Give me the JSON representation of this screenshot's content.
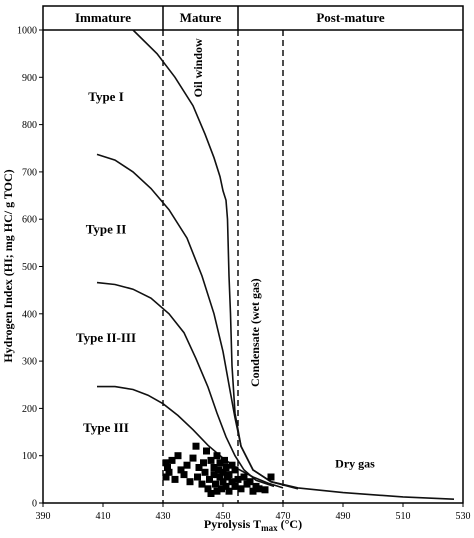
{
  "chart_data": {
    "type": "scatter",
    "title": "",
    "xlabel": "Pyrolysis T",
    "xlabel_sub": "max",
    "xlabel_unit": " (°C)",
    "ylabel": "Hydrogen Index (HI; mg HC/ g TOC)",
    "xlim": [
      390,
      530
    ],
    "ylim": [
      0,
      1000
    ],
    "x_ticks": [
      "390",
      "410",
      "430",
      "450",
      "470",
      "490",
      "510",
      "530"
    ],
    "y_ticks": [
      "0",
      "100",
      "200",
      "300",
      "400",
      "500",
      "600",
      "700",
      "800",
      "900",
      "1000"
    ],
    "maturity_zones": [
      {
        "label": "Immature",
        "x_from": 390,
        "x_to": 430
      },
      {
        "label": "Mature",
        "x_from": 430,
        "x_to": 455
      },
      {
        "label": "Post-mature",
        "x_from": 455,
        "x_to": 530
      }
    ],
    "boundary_lines_x": [
      430,
      455,
      470
    ],
    "type_labels": [
      {
        "label": "Type I",
        "x": 411,
        "y": 850
      },
      {
        "label": "Type II",
        "x": 411,
        "y": 570
      },
      {
        "label": "Type II-III",
        "x": 411,
        "y": 340
      },
      {
        "label": "Type III",
        "x": 411,
        "y": 150
      }
    ],
    "annotations": {
      "oil_window": {
        "text": "Oil window",
        "x": 443,
        "y": 920
      },
      "condensate": {
        "text": "Condensate (wet gas)",
        "x": 462,
        "y": 360
      },
      "dry_gas": {
        "text": "Dry gas",
        "x": 494,
        "y": 75
      }
    },
    "series": [
      {
        "id": "type-i",
        "style": "line",
        "x": [
          420,
          428,
          434,
          440,
          444,
          447,
          449,
          450,
          451,
          451.5,
          452,
          452.5,
          453,
          454,
          456,
          460,
          466,
          475,
          490,
          510,
          527
        ],
        "y": [
          1000,
          950,
          900,
          840,
          780,
          730,
          690,
          660,
          640,
          600,
          480,
          400,
          290,
          190,
          120,
          70,
          45,
          32,
          22,
          13,
          8
        ]
      },
      {
        "id": "type-ii",
        "style": "line",
        "x": [
          408,
          414,
          420,
          426,
          432,
          438,
          443,
          447,
          450,
          452,
          454,
          456,
          460,
          466,
          475
        ],
        "y": [
          737,
          725,
          700,
          665,
          620,
          560,
          480,
          400,
          320,
          250,
          180,
          120,
          70,
          45,
          30
        ]
      },
      {
        "id": "type-ii-iii",
        "style": "line",
        "x": [
          408,
          414,
          420,
          426,
          432,
          437,
          441,
          445,
          448,
          451,
          454,
          457,
          461,
          467
        ],
        "y": [
          466,
          462,
          452,
          433,
          400,
          360,
          305,
          245,
          190,
          140,
          100,
          70,
          48,
          35
        ]
      },
      {
        "id": "type-iii",
        "style": "line",
        "x": [
          408,
          414,
          420,
          425,
          430,
          435,
          440,
          445,
          450,
          455,
          460,
          465,
          470
        ],
        "y": [
          246,
          246,
          240,
          228,
          210,
          185,
          155,
          122,
          95,
          72,
          55,
          42,
          32
        ]
      },
      {
        "id": "samples",
        "style": "points",
        "x": [
          431,
          431,
          431.5,
          432,
          433,
          434,
          435,
          436,
          437,
          438,
          439,
          440,
          441,
          441.5,
          442,
          443,
          443.5,
          444,
          444.5,
          445,
          445.5,
          446,
          446,
          447,
          447,
          447.5,
          448,
          448,
          448.5,
          449,
          449,
          449.5,
          450,
          450,
          450.5,
          451,
          451,
          451.5,
          452,
          452,
          453,
          453,
          454,
          454,
          455,
          456,
          457,
          458,
          459,
          460,
          461,
          462,
          464,
          466
        ],
        "y": [
          85,
          55,
          75,
          65,
          90,
          50,
          100,
          70,
          60,
          80,
          45,
          95,
          120,
          55,
          75,
          40,
          85,
          65,
          110,
          30,
          50,
          90,
          20,
          75,
          60,
          40,
          100,
          25,
          70,
          55,
          85,
          30,
          65,
          45,
          90,
          35,
          75,
          55,
          60,
          25,
          80,
          45,
          70,
          35,
          50,
          30,
          55,
          40,
          45,
          25,
          35,
          30,
          28,
          55
        ]
      }
    ]
  }
}
